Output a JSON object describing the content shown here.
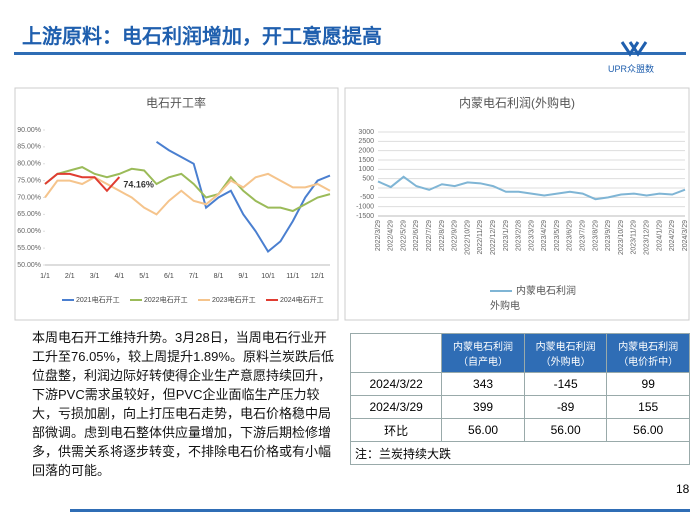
{
  "header": {
    "title": "上游原料：电石利润增加，开工意愿提高",
    "logo": "UPR众盟数"
  },
  "chart_data": [
    {
      "type": "line",
      "title": "电石开工率",
      "categories": [
        "1/1",
        null,
        "2/1",
        null,
        "3/1",
        null,
        "4/1",
        null,
        "5/1",
        null,
        "6/1",
        null,
        "7/1",
        null,
        "8/1",
        null,
        "9/1",
        null,
        "10/1",
        null,
        "11/1",
        null,
        "12/1",
        null
      ],
      "series": [
        {
          "name": "2021电石开工",
          "color": "#4a7fd0",
          "values": [
            null,
            null,
            null,
            null,
            null,
            null,
            null,
            null,
            null,
            86.5,
            84,
            82,
            80,
            67,
            70,
            72,
            65,
            60,
            54,
            57,
            63,
            70,
            75,
            76.5
          ]
        },
        {
          "name": "2022电石开工",
          "color": "#9bbb59",
          "values": [
            74,
            77,
            78,
            79,
            77,
            76,
            77,
            78.5,
            78,
            74,
            76,
            77,
            74,
            70,
            71,
            76,
            72,
            69,
            67,
            67,
            66,
            68,
            70,
            71
          ]
        },
        {
          "name": "2023电石开工",
          "color": "#f5c48c",
          "values": [
            70,
            75,
            75,
            74,
            76,
            74,
            72,
            70,
            67,
            65,
            69,
            72,
            69,
            68,
            71,
            75,
            73,
            76,
            77,
            75,
            73,
            73,
            74,
            72
          ]
        },
        {
          "name": "2024电石开工",
          "color": "#e03c31",
          "values": [
            74,
            77,
            77,
            76,
            76,
            72,
            76.05,
            null,
            null,
            null,
            null,
            null,
            null,
            null,
            null,
            null,
            null,
            null,
            null,
            null,
            null,
            null,
            null,
            null
          ]
        }
      ],
      "annotation": "74.16%",
      "ylim": [
        50,
        90
      ],
      "yticks": [
        {
          "value": 50,
          "label": "50.00%"
        },
        {
          "value": 55,
          "label": "55.00%"
        },
        {
          "value": 60,
          "label": "60.00%"
        },
        {
          "value": 65,
          "label": "65.00%"
        },
        {
          "value": 70,
          "label": "70.00%"
        },
        {
          "value": 75,
          "label": "75.00%"
        },
        {
          "value": 80,
          "label": "80.00%"
        },
        {
          "value": 85,
          "label": "85.00%"
        },
        {
          "value": 90,
          "label": "90.00%"
        }
      ],
      "grid": false,
      "legend": "bottom"
    },
    {
      "type": "line",
      "title": "内蒙电石利润(外购电)",
      "categories": [
        "2022/3/29",
        "2022/4/29",
        "2022/5/29",
        "2022/6/29",
        "2022/7/29",
        "2022/8/29",
        "2022/9/29",
        "2022/10/29",
        "2022/11/29",
        "2022/12/29",
        "2023/1/29",
        "2023/2/28",
        "2023/3/29",
        "2023/4/29",
        "2023/5/29",
        "2023/6/29",
        "2023/7/29",
        "2023/8/29",
        "2023/9/29",
        "2023/10/29",
        "2023/11/29",
        "2023/12/29",
        "2024/1/29",
        "2024/2/29",
        "2024/3/29"
      ],
      "series": [
        {
          "name": "内蒙电石利润外购电",
          "color": "#7fb5d5",
          "values": [
            350,
            50,
            600,
            100,
            -100,
            200,
            100,
            300,
            250,
            100,
            -200,
            -200,
            -300,
            -400,
            -300,
            -200,
            -300,
            -600,
            -500,
            -350,
            -300,
            -400,
            -300,
            -350,
            -89
          ]
        }
      ],
      "ylim": [
        -1500,
        3000
      ],
      "yticks": [
        -1500,
        -1000,
        -500,
        0,
        500,
        1000,
        1500,
        2000,
        2500,
        3000
      ],
      "grid": true,
      "legend": "bottom"
    }
  ],
  "text": "本周电石开工维持升势。3月28日，当周电石行业开工升至76.05%，较上周提升1.89%。原料兰炭跌后低位盘整，利润边际好转使得企业生产意愿持续回升，下游PVC需求虽较好，但PVC企业面临生产压力较大，亏损加剧，向上打压电石走势，电石价格稳中局部微调。虑到电石整体供应量增加，下游后期检修增多，供需关系将逐步转变，不排除电石价格或有小幅回落的可能。",
  "table": {
    "header": [
      "",
      "内蒙电石利润（自产电）",
      "内蒙电石利润（外购电）",
      "内蒙电石利润（电价折中）"
    ],
    "rows": [
      [
        "2024/3/22",
        "343",
        "-145",
        "99"
      ],
      [
        "2024/3/29",
        "399",
        "-89",
        "155"
      ],
      [
        "环比",
        "56.00",
        "56.00",
        "56.00"
      ]
    ],
    "note": "注：兰炭持续大跌"
  },
  "page_number": "18"
}
